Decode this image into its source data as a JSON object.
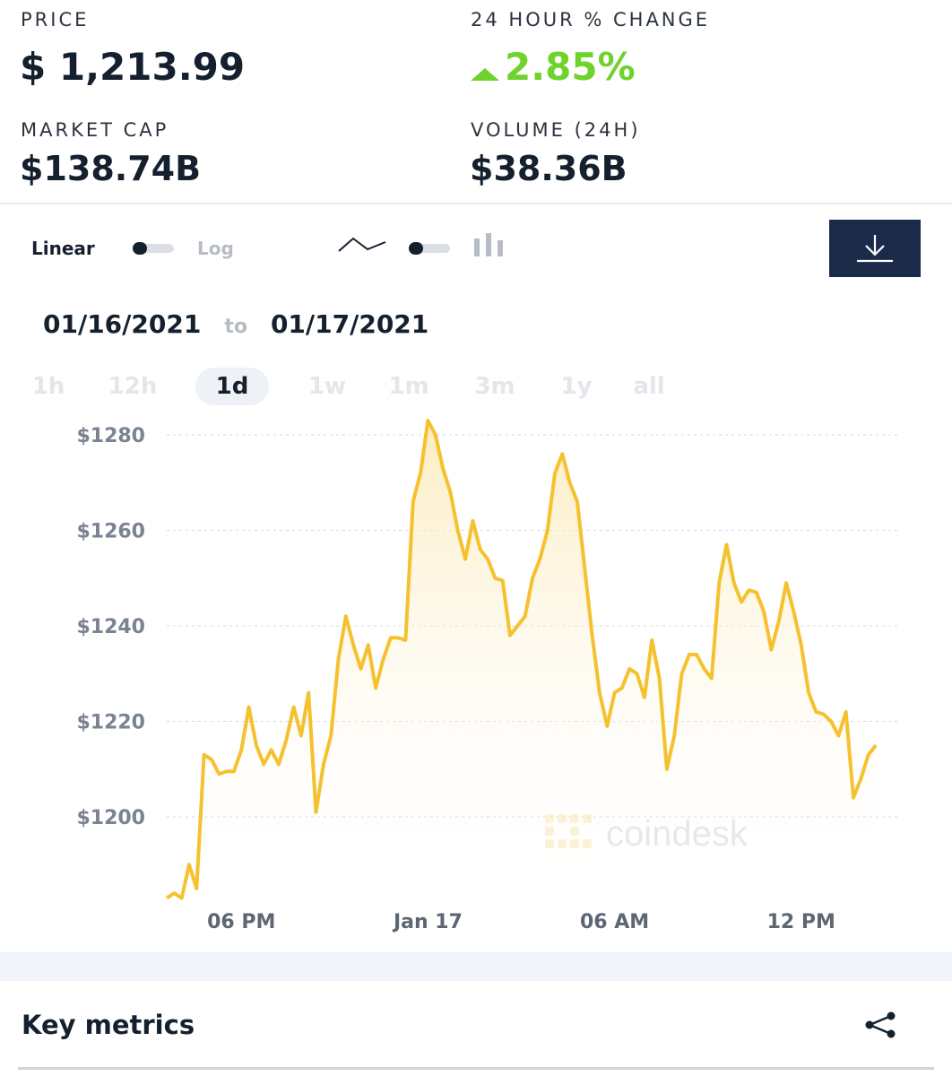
{
  "stats": {
    "price_label": "PRICE",
    "price_value": "$ 1,213.99",
    "change_label": "24 HOUR % CHANGE",
    "change_value": "2.85%",
    "mcap_label": "MARKET CAP",
    "mcap_value": "$138.74B",
    "volume_label": "VOLUME (24H)",
    "volume_value": "$38.36B"
  },
  "controls": {
    "linear_label": "Linear",
    "log_label": "Log",
    "line_icon": "line-chart-icon",
    "bar_icon": "candlestick-icon",
    "download_icon": "download-icon"
  },
  "daterange": {
    "from": "01/16/2021",
    "to_word": "to",
    "to": "01/17/2021"
  },
  "ranges": [
    {
      "label": "1h"
    },
    {
      "label": "12h"
    },
    {
      "label": "1d",
      "active": true
    },
    {
      "label": "1w"
    },
    {
      "label": "1m"
    },
    {
      "label": "3m"
    },
    {
      "label": "1y"
    },
    {
      "label": "all"
    }
  ],
  "chart_data": {
    "type": "area",
    "ylim": [
      1182,
      1283
    ],
    "yticks": [
      1200,
      1220,
      1240,
      1260,
      1280
    ],
    "ytick_labels": [
      "$1200",
      "$1220",
      "$1240",
      "$1260",
      "$1280"
    ],
    "xlim": [
      0,
      98
    ],
    "xticks": [
      {
        "x": 10,
        "label": "06 PM"
      },
      {
        "x": 35,
        "label": "Jan 17"
      },
      {
        "x": 60,
        "label": "06 AM"
      },
      {
        "x": 85,
        "label": "12 PM"
      }
    ],
    "series": [
      {
        "color": "#f5c12e",
        "values": [
          1183,
          1184,
          1183,
          1190,
          1185,
          1213,
          1212,
          1209,
          1209.5,
          1209.5,
          1214,
          1223,
          1215,
          1211,
          1214,
          1211,
          1216,
          1223,
          1217,
          1226,
          1201,
          1211,
          1217,
          1233,
          1242,
          1236,
          1231,
          1236,
          1227,
          1233,
          1237.5,
          1237.5,
          1237,
          1266,
          1272,
          1283,
          1280,
          1273,
          1268,
          1260,
          1254,
          1262,
          1256,
          1254,
          1250,
          1249.5,
          1238,
          1240,
          1242,
          1250,
          1254,
          1260,
          1272,
          1276,
          1270,
          1266,
          1252,
          1238,
          1226,
          1219,
          1226,
          1227,
          1231,
          1230,
          1225,
          1237,
          1229,
          1210,
          1217,
          1230,
          1234,
          1234,
          1231,
          1229,
          1249,
          1257,
          1249,
          1245,
          1247.5,
          1247,
          1243,
          1235,
          1241,
          1249,
          1243,
          1236,
          1226,
          1222,
          1221.5,
          1220,
          1217,
          1222,
          1204,
          1208,
          1213,
          1215
        ]
      }
    ],
    "watermark": "coindesk"
  },
  "footer": {
    "title": "Key metrics",
    "share_icon": "share-icon"
  }
}
